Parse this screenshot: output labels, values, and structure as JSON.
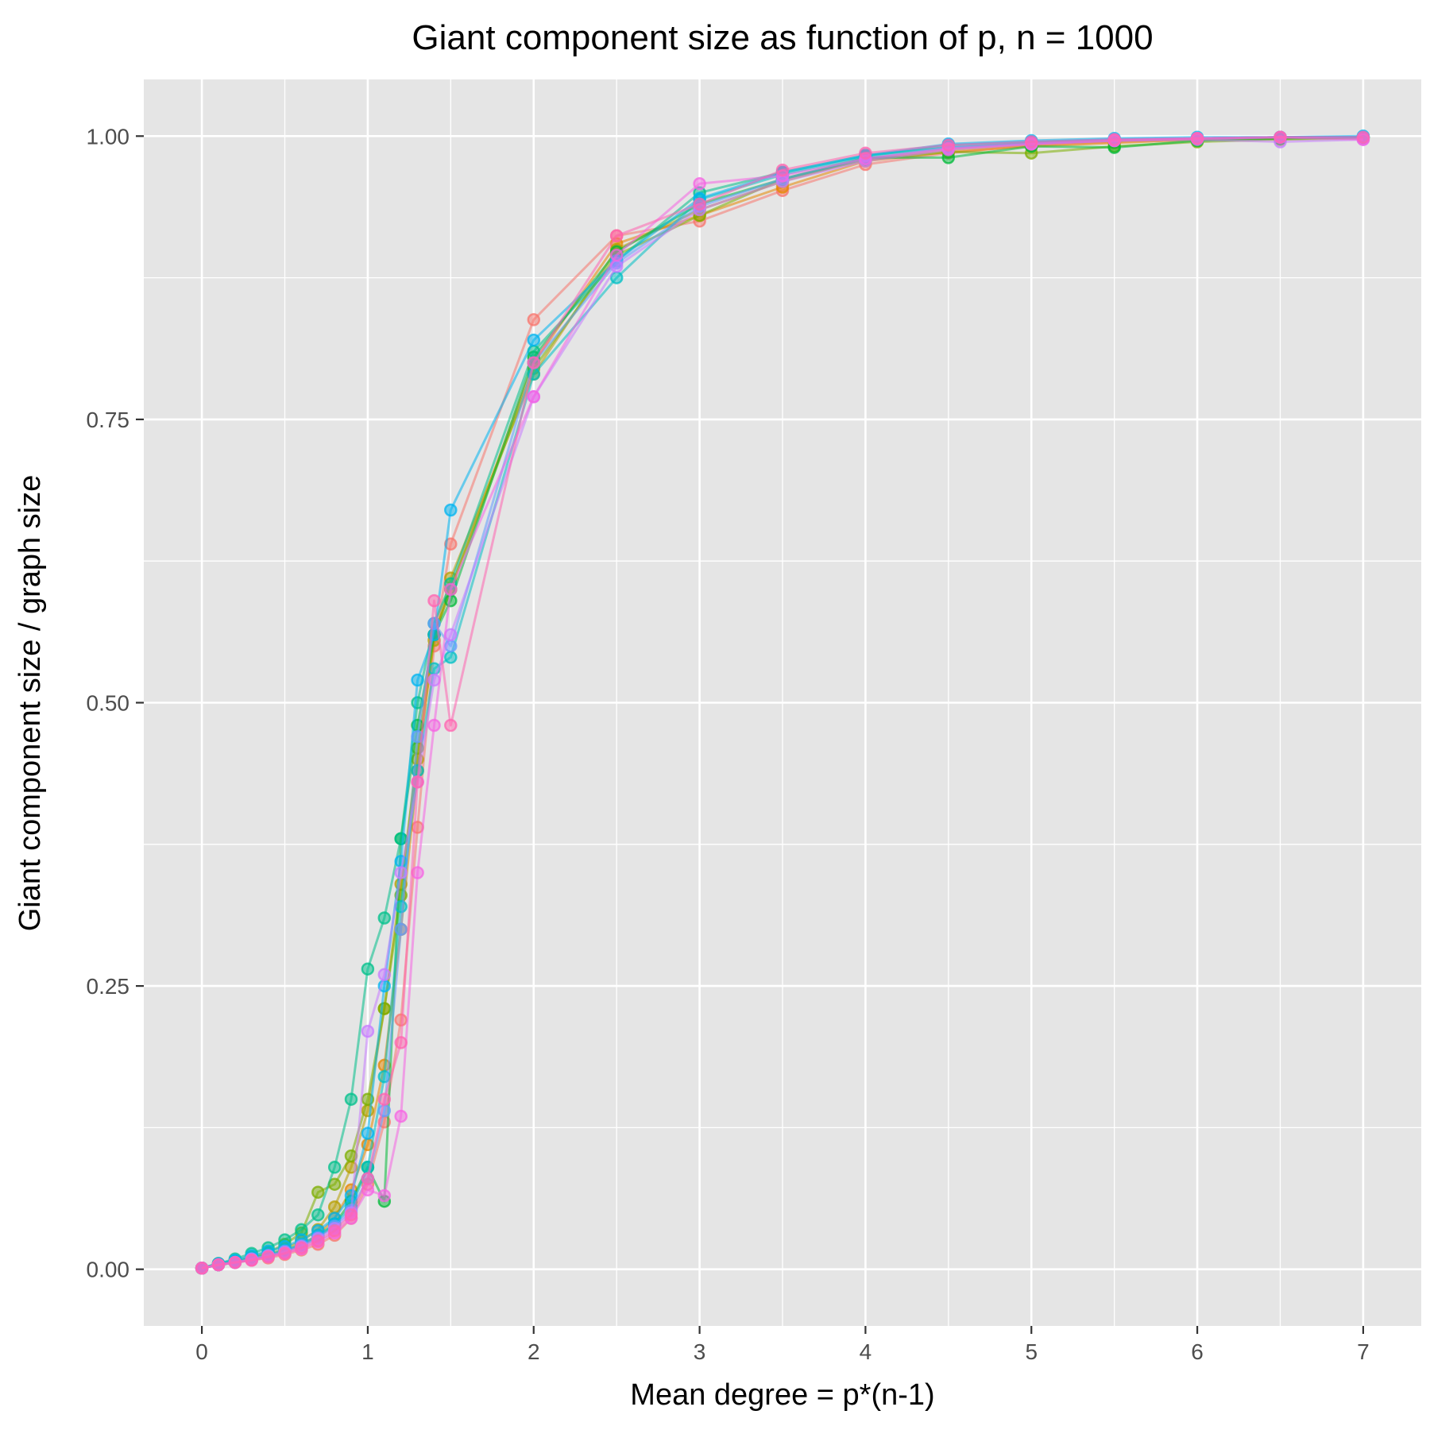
{
  "chart_data": {
    "type": "line",
    "title": "Giant component size as function of p, n = 1000",
    "xlabel": "Mean degree = p*(n-1)",
    "ylabel": "Giant component size / graph size",
    "xlim": [
      -0.35,
      7.35
    ],
    "ylim": [
      -0.05,
      1.05
    ],
    "x_ticks": [
      0,
      1,
      2,
      3,
      4,
      5,
      6,
      7
    ],
    "x_tick_labels": [
      "0",
      "1",
      "2",
      "3",
      "4",
      "5",
      "6",
      "7"
    ],
    "y_ticks": [
      0,
      0.25,
      0.5,
      0.75,
      1.0
    ],
    "y_tick_labels": [
      "0.00",
      "0.25",
      "0.50",
      "0.75",
      "1.00"
    ],
    "grid": true,
    "legend": "none",
    "x": [
      0,
      0.1,
      0.2,
      0.3,
      0.4,
      0.5,
      0.6,
      0.7,
      0.8,
      0.9,
      1.0,
      1.1,
      1.2,
      1.3,
      1.4,
      1.5,
      2.0,
      2.5,
      3.0,
      3.5,
      4.0,
      4.5,
      5.0,
      5.5,
      6.0,
      6.5,
      7.0
    ],
    "series": [
      {
        "color": "#F8766D",
        "values": [
          0.001,
          0.004,
          0.006,
          0.008,
          0.01,
          0.013,
          0.017,
          0.022,
          0.03,
          0.045,
          0.075,
          0.13,
          0.22,
          0.39,
          0.55,
          0.64,
          0.838,
          0.912,
          0.925,
          0.952,
          0.975,
          0.985,
          0.992,
          0.995,
          0.997,
          0.998,
          0.999
        ]
      },
      {
        "color": "#E58700",
        "values": [
          0.001,
          0.005,
          0.007,
          0.009,
          0.012,
          0.016,
          0.022,
          0.03,
          0.045,
          0.07,
          0.11,
          0.18,
          0.3,
          0.44,
          0.56,
          0.6,
          0.8,
          0.905,
          0.93,
          0.955,
          0.978,
          0.986,
          0.991,
          0.994,
          0.997,
          0.998,
          0.999
        ]
      },
      {
        "color": "#B79F00",
        "values": [
          0.001,
          0.004,
          0.006,
          0.01,
          0.013,
          0.018,
          0.025,
          0.035,
          0.055,
          0.09,
          0.14,
          0.23,
          0.34,
          0.45,
          0.555,
          0.61,
          0.79,
          0.9,
          0.935,
          0.96,
          0.98,
          0.988,
          0.993,
          0.996,
          0.998,
          0.999,
          0.999
        ]
      },
      {
        "color": "#7CAE00",
        "values": [
          0.001,
          0.004,
          0.007,
          0.011,
          0.015,
          0.022,
          0.032,
          0.068,
          0.075,
          0.1,
          0.15,
          0.23,
          0.33,
          0.46,
          0.56,
          0.6,
          0.795,
          0.895,
          0.93,
          0.962,
          0.979,
          0.986,
          0.985,
          0.991,
          0.995,
          0.997,
          0.998
        ]
      },
      {
        "color": "#00BA38",
        "values": [
          0.001,
          0.004,
          0.006,
          0.009,
          0.012,
          0.016,
          0.021,
          0.028,
          0.04,
          0.06,
          0.09,
          0.06,
          0.38,
          0.48,
          0.56,
          0.59,
          0.805,
          0.898,
          0.94,
          0.962,
          0.981,
          0.981,
          0.991,
          0.99,
          0.996,
          0.998,
          0.999
        ]
      },
      {
        "color": "#00C08B",
        "values": [
          0.001,
          0.005,
          0.009,
          0.014,
          0.019,
          0.026,
          0.035,
          0.048,
          0.09,
          0.15,
          0.265,
          0.31,
          0.38,
          0.5,
          0.57,
          0.605,
          0.81,
          0.89,
          0.95,
          0.968,
          0.983,
          0.99,
          0.994,
          0.996,
          0.998,
          0.999,
          0.999
        ]
      },
      {
        "color": "#00BFC4",
        "values": [
          0.001,
          0.004,
          0.007,
          0.01,
          0.013,
          0.017,
          0.022,
          0.03,
          0.04,
          0.055,
          0.09,
          0.17,
          0.32,
          0.44,
          0.53,
          0.54,
          0.79,
          0.875,
          0.944,
          0.966,
          0.982,
          0.992,
          0.995,
          0.997,
          0.998,
          0.999,
          0.999
        ]
      },
      {
        "color": "#00B4F0",
        "values": [
          0.001,
          0.005,
          0.008,
          0.012,
          0.016,
          0.02,
          0.026,
          0.034,
          0.045,
          0.065,
          0.12,
          0.25,
          0.36,
          0.52,
          0.56,
          0.67,
          0.82,
          0.89,
          0.945,
          0.968,
          0.983,
          0.993,
          0.996,
          0.998,
          0.999,
          0.999,
          1.0
        ]
      },
      {
        "color": "#619CFF",
        "values": [
          0.001,
          0.004,
          0.006,
          0.009,
          0.012,
          0.016,
          0.021,
          0.028,
          0.038,
          0.052,
          0.08,
          0.14,
          0.3,
          0.47,
          0.57,
          0.55,
          0.8,
          0.888,
          0.938,
          0.962,
          0.98,
          0.99,
          0.994,
          0.997,
          0.998,
          0.999,
          0.999
        ]
      },
      {
        "color": "#C77CFF",
        "values": [
          0.001,
          0.004,
          0.006,
          0.009,
          0.012,
          0.015,
          0.02,
          0.027,
          0.036,
          0.05,
          0.21,
          0.26,
          0.35,
          0.43,
          0.52,
          0.56,
          0.77,
          0.885,
          0.935,
          0.96,
          0.978,
          0.988,
          0.993,
          0.996,
          0.997,
          0.995,
          0.997
        ]
      },
      {
        "color": "#F564E3",
        "values": [
          0.001,
          0.004,
          0.006,
          0.008,
          0.011,
          0.014,
          0.018,
          0.024,
          0.032,
          0.045,
          0.07,
          0.065,
          0.135,
          0.35,
          0.48,
          0.6,
          0.77,
          0.895,
          0.958,
          0.965,
          0.98,
          0.989,
          0.993,
          0.996,
          0.998,
          0.999,
          0.997
        ]
      },
      {
        "color": "#FF64B0",
        "values": [
          0.001,
          0.004,
          0.006,
          0.008,
          0.011,
          0.014,
          0.019,
          0.025,
          0.034,
          0.048,
          0.08,
          0.15,
          0.2,
          0.43,
          0.59,
          0.48,
          0.8,
          0.912,
          0.94,
          0.97,
          0.985,
          0.992,
          0.995,
          0.997,
          0.998,
          0.999,
          0.999
        ]
      }
    ]
  }
}
